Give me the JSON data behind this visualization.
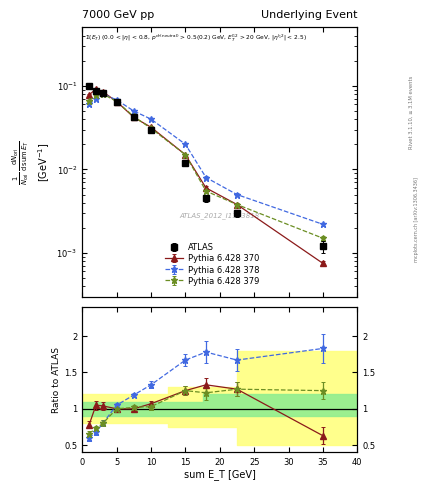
{
  "title_left": "7000 GeV pp",
  "title_right": "Underlying Event",
  "annotation": "ATLAS_2012_I1183818",
  "right_label_top": "Rivet 3.1.10, ≥ 3.1M events",
  "right_label_bot": "mcplots.cern.ch [arXiv:1306.3436]",
  "ylabel_main": "1/N_{ori} dN_{ori}/dsum E_T [GeV^{-1}]",
  "ylabel_ratio": "Ratio to ATLAS",
  "xlabel": "sum E_T [GeV]",
  "xlim": [
    0,
    40
  ],
  "ylim_main_log": [
    -3.5,
    0.3
  ],
  "ylim_main": [
    0.0003,
    0.5
  ],
  "ylim_ratio": [
    0.4,
    2.4
  ],
  "x_atlas": [
    1.0,
    2.0,
    3.0,
    5.0,
    7.5,
    10.0,
    15.0,
    18.0,
    22.5,
    35.0
  ],
  "y_atlas": [
    0.1,
    0.088,
    0.082,
    0.065,
    0.042,
    0.03,
    0.012,
    0.0045,
    0.003,
    0.0012
  ],
  "yerr_atlas_lo": [
    0.005,
    0.004,
    0.004,
    0.003,
    0.002,
    0.001,
    0.0008,
    0.0004,
    0.0003,
    0.0002
  ],
  "yerr_atlas_hi": [
    0.005,
    0.004,
    0.004,
    0.003,
    0.002,
    0.001,
    0.0008,
    0.0004,
    0.0003,
    0.0002
  ],
  "x_mc": [
    1.0,
    2.0,
    3.0,
    5.0,
    7.5,
    10.0,
    15.0,
    18.0,
    22.5,
    35.0
  ],
  "y_py370": [
    0.078,
    0.092,
    0.085,
    0.065,
    0.042,
    0.032,
    0.015,
    0.006,
    0.0038,
    0.00075
  ],
  "yerr_py370": [
    0.002,
    0.002,
    0.002,
    0.001,
    0.001,
    0.001,
    0.0005,
    0.0003,
    0.0002,
    5e-05
  ],
  "y_py378": [
    0.06,
    0.07,
    0.08,
    0.068,
    0.05,
    0.04,
    0.02,
    0.008,
    0.005,
    0.0022
  ],
  "yerr_py378": [
    0.002,
    0.002,
    0.002,
    0.001,
    0.001,
    0.001,
    0.0005,
    0.0003,
    0.0002,
    0.0001
  ],
  "y_py379": [
    0.066,
    0.078,
    0.08,
    0.065,
    0.043,
    0.031,
    0.015,
    0.0055,
    0.0038,
    0.0015
  ],
  "yerr_py379": [
    0.002,
    0.002,
    0.002,
    0.001,
    0.001,
    0.001,
    0.0005,
    0.0003,
    0.0002,
    8e-05
  ],
  "ratio_py370": [
    0.78,
    1.05,
    1.04,
    1.0,
    1.0,
    1.07,
    1.25,
    1.33,
    1.27,
    0.63
  ],
  "ratio_py370_err": [
    0.05,
    0.06,
    0.05,
    0.03,
    0.03,
    0.04,
    0.06,
    0.1,
    0.1,
    0.12
  ],
  "ratio_py378": [
    0.6,
    0.68,
    0.8,
    1.05,
    1.19,
    1.33,
    1.67,
    1.78,
    1.67,
    1.83
  ],
  "ratio_py378_err": [
    0.04,
    0.04,
    0.04,
    0.03,
    0.03,
    0.05,
    0.08,
    0.15,
    0.15,
    0.2
  ],
  "ratio_py379": [
    0.66,
    0.73,
    0.8,
    1.0,
    1.02,
    1.03,
    1.25,
    1.22,
    1.27,
    1.25
  ],
  "ratio_py379_err": [
    0.04,
    0.04,
    0.04,
    0.03,
    0.03,
    0.04,
    0.06,
    0.1,
    0.1,
    0.12
  ],
  "band_edges": [
    0,
    2.5,
    5.0,
    7.5,
    12.5,
    17.5,
    22.5,
    30.0,
    40.0
  ],
  "band_green_lo": [
    0.9,
    0.9,
    0.9,
    0.9,
    0.9,
    0.9,
    0.9,
    0.9
  ],
  "band_green_hi": [
    1.1,
    1.1,
    1.1,
    1.1,
    1.1,
    1.2,
    1.2,
    1.2
  ],
  "band_yellow_lo": [
    0.8,
    0.8,
    0.8,
    0.8,
    0.75,
    0.75,
    0.5,
    0.5
  ],
  "band_yellow_hi": [
    1.2,
    1.2,
    1.2,
    1.2,
    1.3,
    1.3,
    1.8,
    1.8
  ],
  "color_atlas": "#000000",
  "color_py370": "#8B1A1A",
  "color_py378": "#4169E1",
  "color_py379": "#6B8E23",
  "color_green": "#90EE90",
  "color_yellow": "#FFFF80",
  "legend_labels": [
    "ATLAS",
    "Pythia 6.428 370",
    "Pythia 6.428 378",
    "Pythia 6.428 379"
  ],
  "fs": 7,
  "fs_tick": 6,
  "fs_small": 5
}
